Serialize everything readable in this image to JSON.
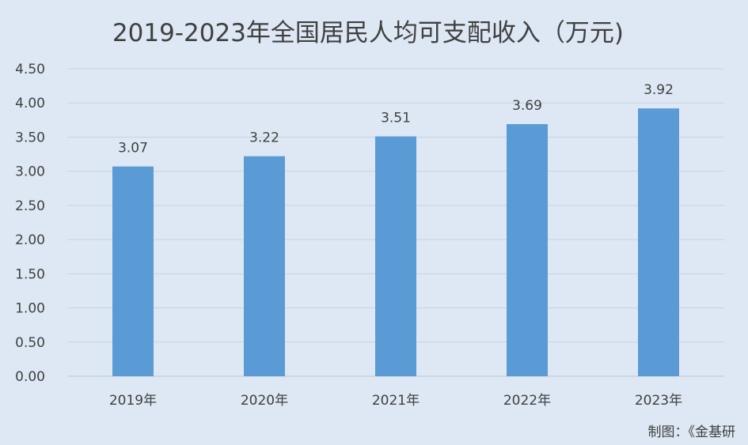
{
  "chart_data": {
    "type": "bar",
    "title": "2019-2023年全国居民人均可支配收入（万元)",
    "categories": [
      "2019年",
      "2020年",
      "2021年",
      "2022年",
      "2023年"
    ],
    "values": [
      3.07,
      3.22,
      3.51,
      3.69,
      3.92
    ],
    "value_labels": [
      "3.07",
      "3.22",
      "3.51",
      "3.69",
      "3.92"
    ],
    "yticks": [
      "0.00",
      "0.50",
      "1.00",
      "1.50",
      "2.00",
      "2.50",
      "3.00",
      "3.50",
      "4.00",
      "4.50"
    ],
    "ylim": [
      0,
      4.5
    ],
    "xlabel": "",
    "ylabel": "",
    "grid": "horizontal",
    "legend": "none",
    "bar_color": "#5b9bd5",
    "background_color": "#dde8f4"
  },
  "footer": {
    "credit": "制图：《金基研"
  }
}
